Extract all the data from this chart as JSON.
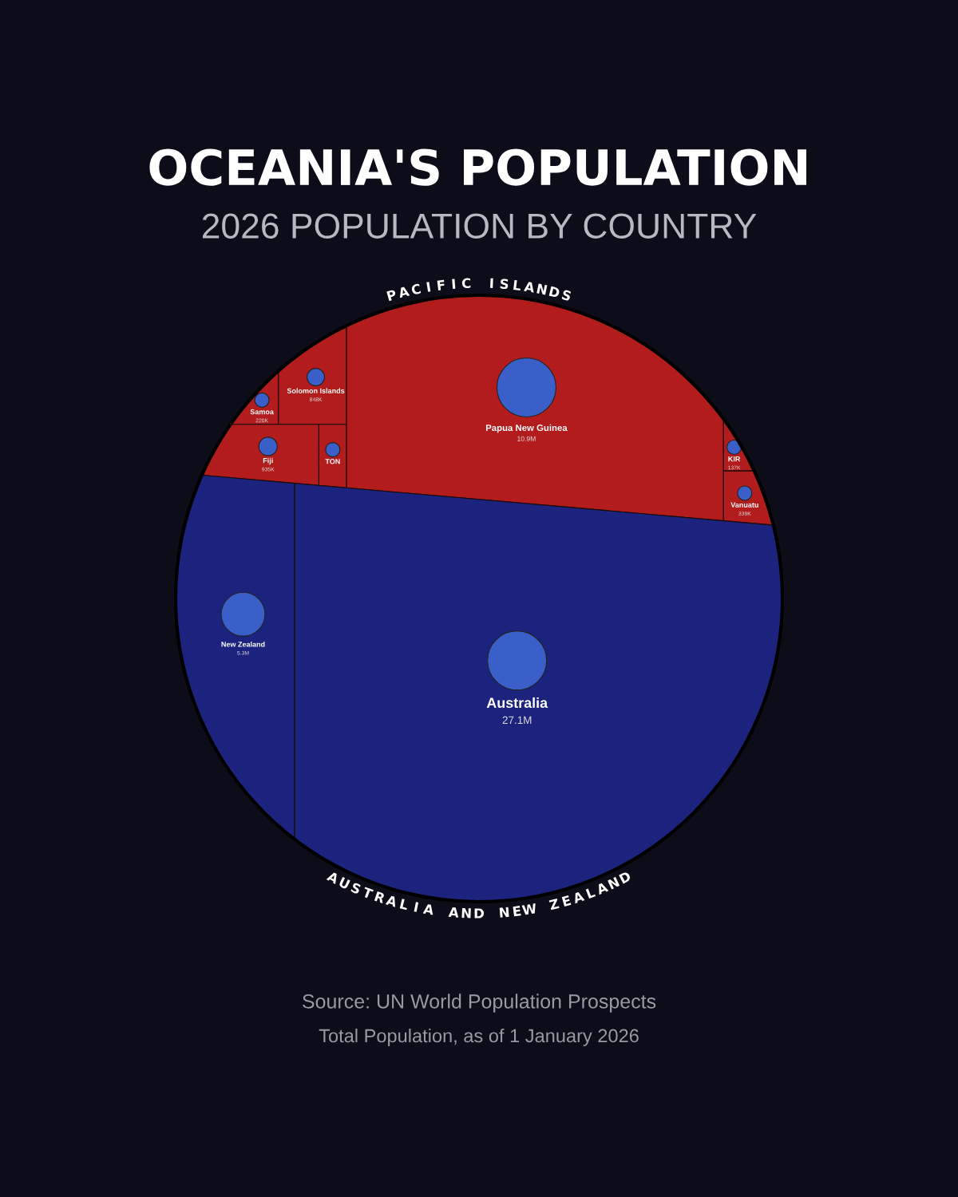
{
  "chart_data": {
    "type": "other",
    "title": "OCEANIA'S POPULATION",
    "subtitle": "2026 POPULATION BY COUNTRY",
    "categories": [
      "Samoa",
      "Solomon Islands",
      "Fiji",
      "TON",
      "Papua New Guinea",
      "KIR",
      "Vanuatu",
      "New Zealand",
      "Australia"
    ],
    "series": [
      {
        "name": "PACIFIC ISLANDS",
        "color": "#b21c1c",
        "values": [
          220000,
          848000,
          935000,
          null,
          10900000,
          137000,
          339000,
          null,
          null
        ],
        "value_labels": [
          "220K",
          "848K",
          "935K",
          null,
          "10.9M",
          "137K",
          "339K",
          null,
          null
        ]
      },
      {
        "name": "AUSTRALIA AND NEW ZEALAND",
        "color": "#1b237e",
        "values": [
          null,
          null,
          null,
          null,
          null,
          null,
          null,
          5300000,
          27100000
        ],
        "value_labels": [
          null,
          null,
          null,
          null,
          null,
          null,
          null,
          "5.3M",
          "27.1M"
        ]
      }
    ],
    "annotations": [
      "Source: UN World Population Prospects",
      "Total Population, as of 1 January 2026"
    ]
  }
}
